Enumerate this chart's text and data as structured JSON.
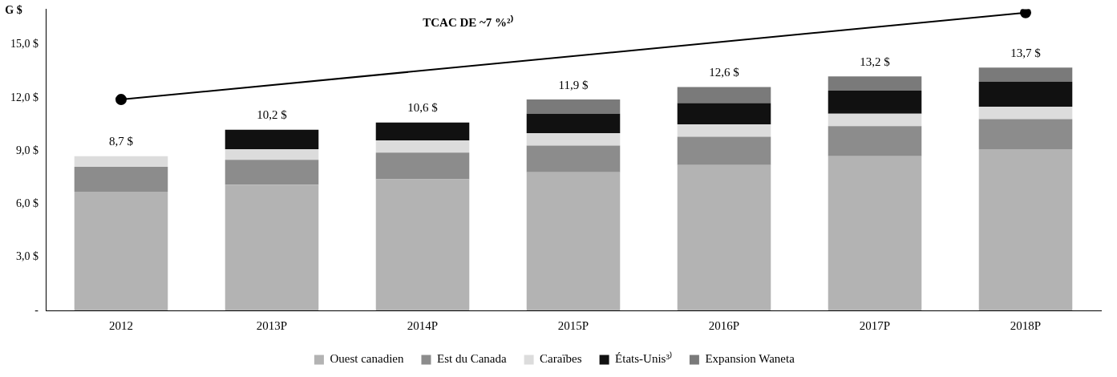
{
  "chart_data": {
    "type": "bar",
    "stacked": true,
    "ylabel": "G $",
    "categories": [
      "2012",
      "2013P",
      "2014P",
      "2015P",
      "2016P",
      "2017P",
      "2018P"
    ],
    "series": [
      {
        "name": "Ouest canadien",
        "color": "#b3b3b3",
        "values": [
          6.7,
          7.1,
          7.4,
          7.8,
          8.2,
          8.7,
          9.1
        ]
      },
      {
        "name": "Est du Canada",
        "color": "#8c8c8c",
        "values": [
          1.4,
          1.4,
          1.5,
          1.5,
          1.6,
          1.7,
          1.7
        ]
      },
      {
        "name": "Caraïbes",
        "color": "#dcdcdc",
        "values": [
          0.6,
          0.6,
          0.7,
          0.7,
          0.7,
          0.7,
          0.7
        ]
      },
      {
        "name": "États-Unis³⁾",
        "color": "#111111",
        "values": [
          0,
          1.1,
          1.0,
          1.1,
          1.2,
          1.3,
          1.4
        ]
      },
      {
        "name": "Expansion Waneta",
        "color": "#7a7a7a",
        "values": [
          0,
          0,
          0,
          0.8,
          0.9,
          0.8,
          0.8
        ]
      },
      {
        "type": "line",
        "color": "#000000",
        "marker": "circle",
        "line_style": "solid",
        "values": [
          11.9,
          null,
          null,
          null,
          null,
          null,
          16.8
        ]
      }
    ],
    "totals": [
      "8,7 $",
      "10,2 $",
      "10,6 $",
      "11,9 $",
      "12,6 $",
      "13,2 $",
      "13,7 $"
    ],
    "annotations": [
      "TCAC DE ~7 %²⁾"
    ],
    "ylim": [
      0,
      17
    ],
    "yticks": [
      {
        "value": 0,
        "label": "-"
      },
      {
        "value": 3,
        "label": "3,0 $"
      },
      {
        "value": 6,
        "label": "6,0 $"
      },
      {
        "value": 9,
        "label": "9,0 $"
      },
      {
        "value": 12,
        "label": "12,0 $"
      },
      {
        "value": 15,
        "label": "15,0 $"
      }
    ],
    "grid": false,
    "legend": "bottom"
  }
}
